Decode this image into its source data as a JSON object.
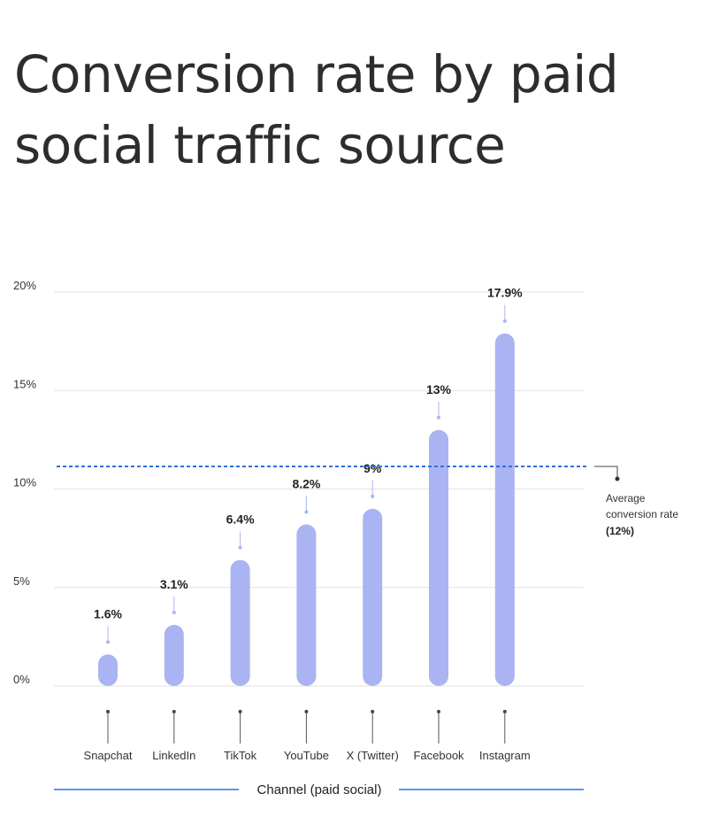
{
  "title_lines": [
    "Conversion rate by paid",
    "social traffic source"
  ],
  "chart_data": {
    "type": "bar",
    "title": "Conversion rate by paid social traffic source",
    "xlabel": "Channel (paid social)",
    "ylabel": "",
    "categories": [
      "Snapchat",
      "LinkedIn",
      "TikTok",
      "YouTube",
      "X (Twitter)",
      "Facebook",
      "Instagram"
    ],
    "values": [
      1.6,
      3.1,
      6.4,
      8.2,
      9,
      13,
      17.9
    ],
    "value_labels": [
      "1.6%",
      "3.1%",
      "6.4%",
      "8.2%",
      "9%",
      "13%",
      "17.9%"
    ],
    "ylim": [
      0,
      20
    ],
    "yticks": [
      0,
      5,
      10,
      15,
      20
    ],
    "ytick_labels": [
      "0%",
      "5%",
      "10%",
      "15%",
      "20%"
    ],
    "grid": true,
    "reference_line": {
      "value": 12,
      "label_lines": [
        "Average",
        "conversion rate"
      ],
      "value_label": "(12%)"
    },
    "colors": {
      "bar": "#aab4f2",
      "reference": "#2f6fe0",
      "axis_title_rule": "#2f6fe0",
      "grid": "#e2e2e2",
      "text": "#222222"
    }
  }
}
